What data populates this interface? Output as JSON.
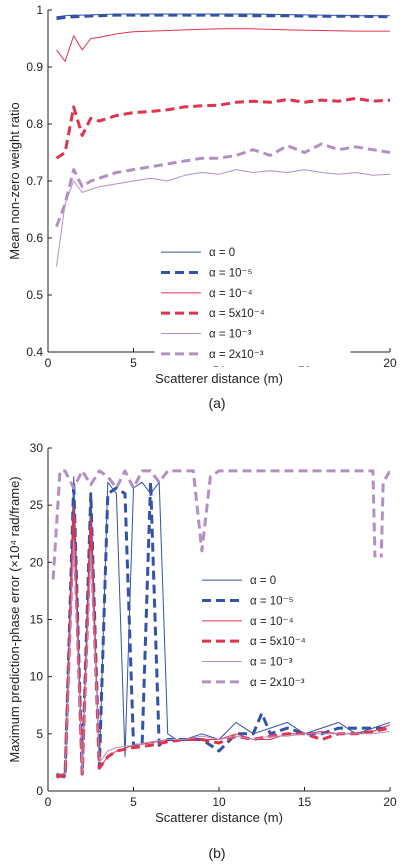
{
  "chart_data": [
    {
      "type": "line",
      "panel_label": "(a)",
      "xlabel": "Scatterer distance (m)",
      "ylabel": "Mean non-zero weight ratio",
      "xlim": [
        0,
        20
      ],
      "ylim": [
        0.4,
        1
      ],
      "xticks": [
        "0",
        "5",
        "10",
        "15",
        "20"
      ],
      "yticks": [
        "0.4",
        "0.5",
        "0.6",
        "0.7",
        "0.8",
        "0.9",
        "1"
      ],
      "grid": false,
      "legend_position": "center-right",
      "series": [
        {
          "name": "α = 0",
          "color": "#3253a8",
          "style": "solid",
          "width": 1,
          "x": [
            0.5,
            1,
            1.5,
            2,
            3,
            4,
            5,
            6,
            8,
            10,
            12,
            14,
            16,
            18,
            20
          ],
          "y": [
            0.988,
            0.99,
            0.991,
            0.991,
            0.992,
            0.993,
            0.993,
            0.993,
            0.993,
            0.993,
            0.993,
            0.992,
            0.991,
            0.99,
            0.99
          ]
        },
        {
          "name": "α = 10⁻⁵",
          "color": "#3253a8",
          "style": "dashed",
          "width": 3,
          "x": [
            0.5,
            1,
            1.5,
            2,
            3,
            4,
            5,
            6,
            8,
            10,
            12,
            14,
            16,
            18,
            20
          ],
          "y": [
            0.985,
            0.987,
            0.988,
            0.989,
            0.99,
            0.991,
            0.991,
            0.991,
            0.991,
            0.991,
            0.99,
            0.99,
            0.989,
            0.989,
            0.988
          ]
        },
        {
          "name": "α = 10⁻⁴",
          "color": "#e0334d",
          "style": "solid",
          "width": 1,
          "x": [
            0.5,
            1,
            1.5,
            2,
            2.5,
            3,
            4,
            5,
            6,
            8,
            10,
            12,
            14,
            16,
            18,
            20
          ],
          "y": [
            0.93,
            0.91,
            0.955,
            0.93,
            0.95,
            0.952,
            0.958,
            0.962,
            0.963,
            0.965,
            0.967,
            0.967,
            0.965,
            0.964,
            0.963,
            0.963
          ]
        },
        {
          "name": "α = 5x10⁻⁴",
          "color": "#e0334d",
          "style": "dashed",
          "width": 3,
          "x": [
            0.5,
            1,
            1.5,
            2,
            2.5,
            3,
            4,
            5,
            6,
            7,
            8,
            9,
            10,
            11,
            12,
            13,
            14,
            15,
            16,
            17,
            18,
            19,
            20
          ],
          "y": [
            0.74,
            0.75,
            0.83,
            0.78,
            0.81,
            0.805,
            0.815,
            0.82,
            0.822,
            0.825,
            0.83,
            0.832,
            0.833,
            0.838,
            0.84,
            0.838,
            0.843,
            0.838,
            0.842,
            0.84,
            0.845,
            0.84,
            0.842
          ]
        },
        {
          "name": "α = 10⁻³",
          "color": "#b48fc4",
          "style": "solid",
          "width": 1,
          "x": [
            0.5,
            1,
            1.5,
            2,
            2.5,
            3,
            4,
            5,
            6,
            7,
            8,
            9,
            10,
            11,
            12,
            13,
            14,
            15,
            16,
            17,
            18,
            19,
            20
          ],
          "y": [
            0.55,
            0.66,
            0.7,
            0.68,
            0.685,
            0.69,
            0.695,
            0.7,
            0.705,
            0.7,
            0.71,
            0.715,
            0.712,
            0.72,
            0.715,
            0.718,
            0.715,
            0.72,
            0.715,
            0.712,
            0.715,
            0.71,
            0.712
          ]
        },
        {
          "name": "α = 2x10⁻³",
          "color": "#b48fc4",
          "style": "dashed",
          "width": 3,
          "x": [
            0.5,
            1,
            1.5,
            2,
            2.5,
            3,
            4,
            5,
            6,
            7,
            8,
            9,
            10,
            11,
            12,
            13,
            14,
            15,
            16,
            17,
            18,
            19,
            20
          ],
          "y": [
            0.62,
            0.66,
            0.72,
            0.69,
            0.7,
            0.705,
            0.715,
            0.72,
            0.725,
            0.73,
            0.735,
            0.74,
            0.74,
            0.745,
            0.755,
            0.745,
            0.762,
            0.75,
            0.765,
            0.755,
            0.76,
            0.755,
            0.75
          ]
        }
      ]
    },
    {
      "type": "line",
      "panel_label": "(b)",
      "xlabel": "Scatterer distance (m)",
      "ylabel": "Maximum prediction-phase error (×10⁴ rad/frame)",
      "xlim": [
        0,
        20
      ],
      "ylim": [
        0,
        30
      ],
      "xticks": [
        "0",
        "5",
        "10",
        "15",
        "20"
      ],
      "yticks": [
        "0",
        "5",
        "10",
        "15",
        "20",
        "25",
        "30"
      ],
      "grid": false,
      "legend_position": "center-right",
      "series": [
        {
          "name": "α = 0",
          "color": "#3253a8",
          "style": "solid",
          "width": 1,
          "x": [
            0.5,
            1,
            1.5,
            2,
            2.5,
            3,
            3.5,
            4,
            4.5,
            5,
            5.5,
            6,
            6.5,
            7,
            7.5,
            8,
            9,
            10,
            11,
            12,
            13,
            14,
            15,
            16,
            17,
            18,
            19,
            20
          ],
          "y": [
            1.5,
            1.2,
            27.5,
            1.5,
            26,
            2,
            27,
            26,
            3,
            26.5,
            27,
            26,
            27,
            5,
            4.5,
            4.5,
            5,
            4.5,
            6,
            5,
            5.5,
            6,
            5,
            5.5,
            6,
            5,
            5.5,
            6
          ]
        },
        {
          "name": "α = 10⁻⁵",
          "color": "#3253a8",
          "style": "dashed",
          "width": 3,
          "x": [
            0.5,
            1,
            1.5,
            2,
            2.5,
            3,
            3.5,
            4,
            4.5,
            5,
            5.5,
            6,
            6.5,
            7,
            8,
            9,
            10,
            11,
            12,
            12.5,
            13,
            14,
            15,
            16,
            17,
            18,
            19,
            20
          ],
          "y": [
            1.5,
            1.2,
            27,
            1.5,
            26,
            2,
            26,
            26.5,
            26,
            4,
            4,
            27,
            4,
            4.5,
            4.5,
            4.5,
            3.5,
            5,
            5,
            6.8,
            5,
            5.5,
            5,
            5,
            5.5,
            5.5,
            5.5,
            5.5
          ]
        },
        {
          "name": "α = 10⁻⁴",
          "color": "#e0334d",
          "style": "solid",
          "width": 1,
          "x": [
            0.5,
            1,
            1.5,
            2,
            2.5,
            3,
            3.5,
            4,
            5,
            6,
            7,
            8,
            9,
            10,
            11,
            12,
            13,
            14,
            15,
            16,
            17,
            18,
            19,
            20
          ],
          "y": [
            1.2,
            1.2,
            25,
            1.5,
            24,
            2,
            3,
            3.5,
            4,
            4.2,
            4.5,
            4.5,
            4.5,
            4.5,
            5,
            4.5,
            4.5,
            5,
            5,
            5.2,
            5,
            5,
            5.2,
            5.8
          ]
        },
        {
          "name": "α = 5x10⁻⁴",
          "color": "#e0334d",
          "style": "dashed",
          "width": 3,
          "x": [
            0.5,
            1,
            1.5,
            2,
            2.5,
            3,
            3.5,
            4,
            5,
            6,
            7,
            8,
            9,
            10,
            11,
            12,
            13,
            14,
            15,
            16,
            17,
            18,
            19,
            20
          ],
          "y": [
            1.2,
            1.5,
            24,
            1.5,
            23,
            2,
            3,
            3.5,
            3.8,
            4,
            4.3,
            4.5,
            4.5,
            4.2,
            4.8,
            4.5,
            4.8,
            5,
            5,
            4.5,
            5,
            5,
            5.2,
            5.5
          ]
        },
        {
          "name": "α = 10⁻³",
          "color": "#b48fc4",
          "style": "solid",
          "width": 1,
          "x": [
            0.5,
            1,
            1.5,
            2,
            2.5,
            3,
            3.5,
            4,
            5,
            6,
            7,
            8,
            9,
            10,
            11,
            12,
            13,
            14,
            15,
            16,
            17,
            18,
            19,
            20
          ],
          "y": [
            1.5,
            1.5,
            22,
            1.5,
            21,
            2.5,
            3.5,
            3.8,
            4,
            4.3,
            4.5,
            4.5,
            4.8,
            4.5,
            4.8,
            4.5,
            4.8,
            4.8,
            5,
            5,
            5,
            5,
            5,
            5.2
          ]
        },
        {
          "name": "α = 2x10⁻³",
          "color": "#b48fc4",
          "style": "dashed",
          "width": 3,
          "x": [
            0.3,
            0.7,
            1,
            1.5,
            2,
            2.5,
            3,
            3.5,
            4,
            4.5,
            5,
            5.5,
            6,
            6.5,
            7,
            7.5,
            8,
            8.5,
            9,
            9.5,
            10,
            10.5,
            11,
            11.5,
            12,
            12.5,
            13,
            13.5,
            14,
            14.5,
            15,
            15.5,
            16,
            16.5,
            17,
            17.5,
            18,
            18.5,
            19,
            19.3,
            19.6,
            20
          ],
          "y": [
            18.5,
            28,
            28,
            26.5,
            28,
            26.8,
            28,
            27.5,
            26.5,
            28,
            26.5,
            28,
            28,
            27,
            28,
            28,
            28,
            28,
            21,
            27.5,
            28,
            28,
            28,
            28,
            28,
            28,
            28,
            28,
            28,
            28,
            28,
            28,
            28,
            28,
            28,
            28,
            28,
            28,
            28,
            9.5,
            27,
            28
          ]
        }
      ]
    }
  ]
}
